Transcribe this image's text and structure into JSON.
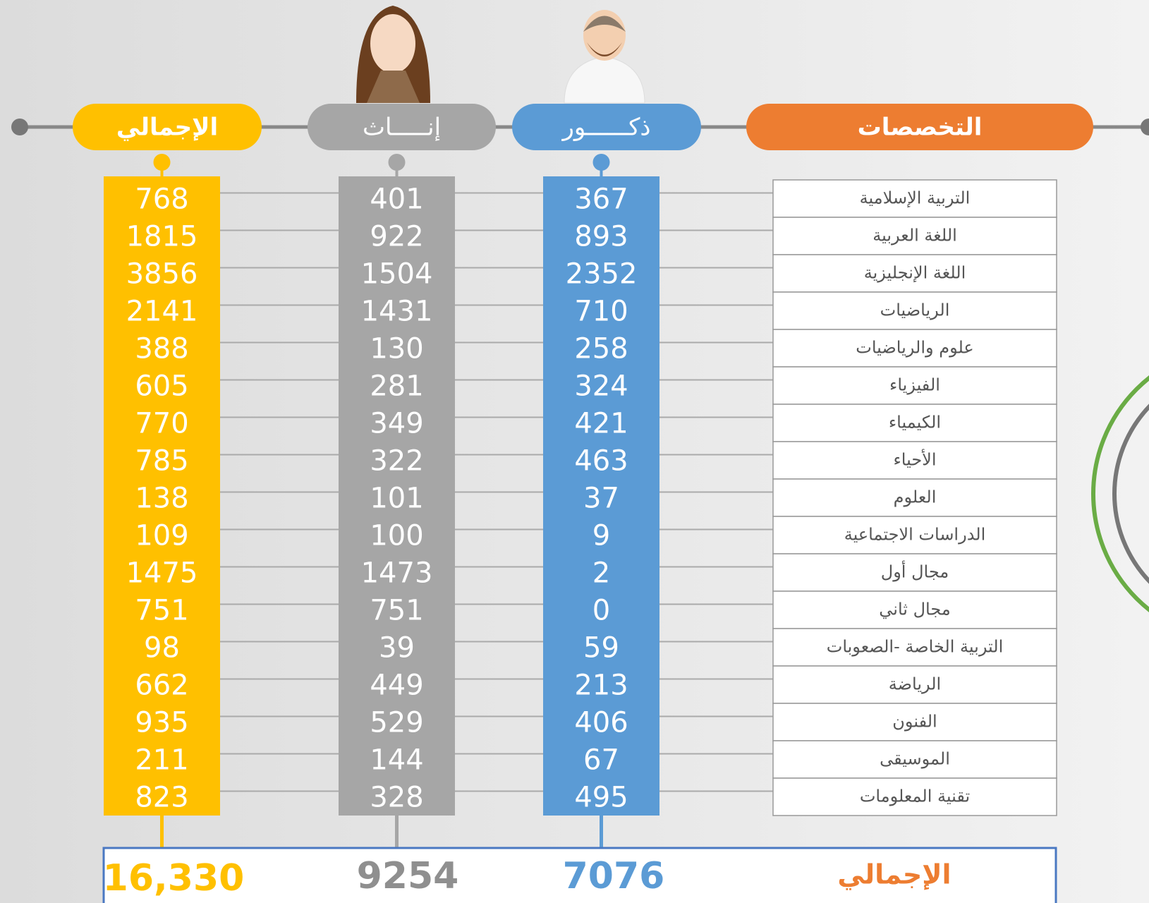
{
  "header": {
    "specialties": "التخصصات",
    "male": "ذكــــــور",
    "female": "إنـــــاث",
    "total": "الإجمالي"
  },
  "table": {
    "rows": [
      [
        "التربية الإسلامية",
        "367",
        "401",
        "768"
      ],
      [
        "اللغة العربية",
        "893",
        "922",
        "1815"
      ],
      [
        "اللغة الإنجليزية",
        "2352",
        "1504",
        "3856"
      ],
      [
        "الرياضيات",
        "710",
        "1431",
        "2141"
      ],
      [
        "علوم والرياضيات",
        "258",
        "130",
        "388"
      ],
      [
        "الفيزياء",
        "324",
        "281",
        "605"
      ],
      [
        "الكيمياء",
        "421",
        "349",
        "770"
      ],
      [
        "الأحياء",
        "463",
        "322",
        "785"
      ],
      [
        "العلوم",
        "37",
        "101",
        "138"
      ],
      [
        "الدراسات الاجتماعية",
        "9",
        "100",
        "109"
      ],
      [
        "مجال أول",
        "2",
        "1473",
        "1475"
      ],
      [
        "مجال ثاني",
        "0",
        "751",
        "751"
      ],
      [
        "التربية الخاصة -الصعوبات",
        "59",
        "39",
        "98"
      ],
      [
        "الرياضة",
        "213",
        "449",
        "662"
      ],
      [
        "الفنون",
        "406",
        "529",
        "935"
      ],
      [
        "الموسيقى",
        "67",
        "144",
        "211"
      ],
      [
        "تقنية المعلومات",
        "495",
        "328",
        "823"
      ]
    ]
  },
  "footer": {
    "label": "الإجمالي",
    "male": "7076",
    "female": "9254",
    "total": "16,330"
  }
}
